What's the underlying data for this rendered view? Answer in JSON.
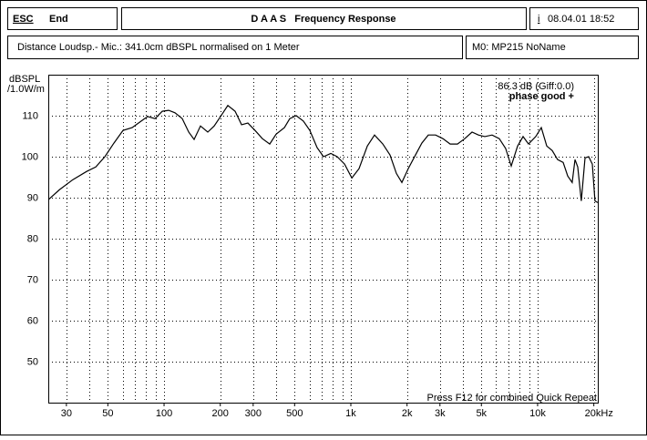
{
  "header": {
    "escape": "ESC",
    "end": "End",
    "title": "D A A S   Frequency Response",
    "info_key": "i",
    "date": "08.04.01 18:52"
  },
  "info_bar": {
    "text": "Distance Loudsp.- Mic.: 341.0cm dBSPL normalised on 1 Meter",
    "memory": "M0: MP215 NoName"
  },
  "chart_data": {
    "type": "line",
    "ylabel": "dBSPL",
    "yunit": "/1.0W/m",
    "annotations": [
      "86.3 dB (Giff:0.0)",
      "phase good +"
    ],
    "footer": "Press F12 for combined Quick Repeat",
    "log_x": true,
    "grid": true,
    "color": "#000000",
    "x": [
      24.0,
      27.5,
      32.5,
      38.5,
      43.1,
      48.2,
      53.9,
      60.3,
      67.5,
      75.5,
      81.7,
      89.4,
      97.8,
      105.8,
      114.4,
      125.2,
      135.5,
      144.8,
      156.7,
      171.5,
      185.5,
      200.6,
      219.5,
      240,
      260,
      281,
      307,
      336,
      368,
      398,
      441,
      471,
      510,
      557,
      603,
      660,
      714,
      781,
      845,
      925,
      1012,
      1107,
      1225,
      1340,
      1483,
      1622,
      1754,
      1876,
      2029,
      2219,
      2400,
      2600,
      2844,
      3111,
      3404,
      3724,
      4074,
      4457,
      4822,
      5214,
      5703,
      6238,
      6745,
      7225,
      7817,
      8358,
      8940,
      9775,
      10470,
      11190,
      11970,
      12800,
      13700,
      14490,
      15310,
      15850,
      16400,
      17140,
      17950,
      18760,
      19630,
      20290,
      21000
    ],
    "values": [
      89.5,
      91.9,
      94.4,
      96.4,
      97.5,
      100.0,
      103.3,
      106.4,
      107.1,
      108.7,
      109.8,
      109.3,
      111.1,
      111.3,
      110.7,
      109.3,
      106.0,
      104.2,
      107.5,
      106.0,
      107.5,
      109.8,
      112.5,
      111.1,
      107.8,
      108.2,
      106.4,
      104.4,
      103.1,
      105.5,
      107.1,
      109.3,
      110.0,
      108.7,
      106.4,
      102.2,
      100.0,
      100.8,
      100.0,
      98.2,
      94.8,
      97.1,
      102.6,
      105.3,
      103.1,
      100.4,
      95.9,
      93.7,
      97.1,
      100.4,
      103.3,
      105.3,
      105.3,
      104.4,
      103.1,
      103.1,
      104.4,
      106.0,
      105.3,
      104.9,
      105.3,
      104.4,
      102.0,
      97.7,
      102.6,
      104.9,
      103.1,
      104.9,
      107.1,
      102.6,
      101.5,
      99.3,
      98.6,
      95.3,
      93.7,
      99.3,
      97.5,
      89.2,
      99.7,
      100.0,
      98.2,
      89.2,
      88.8
    ],
    "xlim": [
      24,
      21000
    ],
    "ylim": [
      40,
      120
    ],
    "yticks": [
      50,
      60,
      70,
      80,
      90,
      100,
      110
    ],
    "xticks": [
      30,
      50,
      100,
      200,
      300,
      500,
      {
        "value": 1000,
        "label": "1k"
      },
      {
        "value": 2000,
        "label": "2k"
      },
      {
        "value": 3000,
        "label": "3k"
      },
      {
        "value": 5000,
        "label": "5k"
      },
      {
        "value": 10000,
        "label": "10k"
      },
      {
        "value": 20000,
        "label": "20kHz"
      }
    ],
    "xgrid": [
      30,
      40,
      50,
      60,
      70,
      80,
      90,
      100,
      200,
      300,
      400,
      500,
      600,
      700,
      800,
      900,
      1000,
      2000,
      3000,
      4000,
      5000,
      6000,
      7000,
      8000,
      9000,
      10000,
      20000
    ]
  }
}
